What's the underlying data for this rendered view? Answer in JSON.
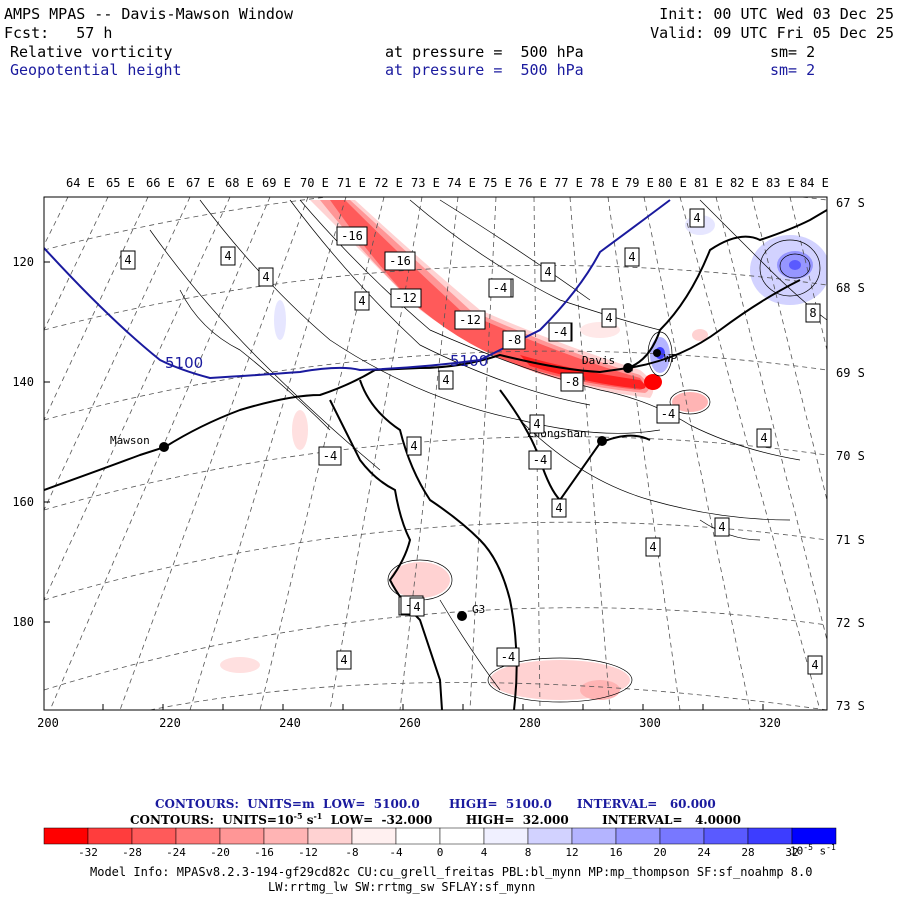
{
  "header": {
    "title": "AMPS MPAS -- Davis-Mawson Window",
    "init": "Init: 00 UTC Wed 03 Dec 25",
    "fcst": "Fcst:   57 h",
    "valid": "Valid: 09 UTC Fri 05 Dec 25",
    "field1": {
      "name": "Relative vorticity",
      "level": "at pressure =  500 hPa",
      "smooth": "sm= 2"
    },
    "field2": {
      "name": "Geopotential height",
      "level": "at pressure =  500 hPa",
      "smooth": "sm= 2"
    }
  },
  "colors": {
    "height_contour": "#1a1a9e",
    "negative": "#ff0000",
    "positive": "#0000ff",
    "coast": "#000000"
  },
  "axes": {
    "lon_labels": [
      "64 E",
      "65 E",
      "66 E",
      "67 E",
      "68 E",
      "69 E",
      "70 E",
      "71 E",
      "72 E",
      "73 E",
      "74 E",
      "75 E",
      "76 E",
      "77 E",
      "78 E",
      "79 E",
      "80 E",
      "81 E",
      "82 E",
      "83 E",
      "84 E"
    ],
    "lat_labels": [
      "67 S",
      "68 S",
      "69 S",
      "70 S",
      "71 S",
      "72 S",
      "73 S"
    ],
    "y_ticks": [
      "120",
      "140",
      "160",
      "180"
    ],
    "x_ticks": [
      "200",
      "220",
      "240",
      "260",
      "280",
      "300",
      "320"
    ]
  },
  "stations": [
    {
      "name": "Mawson"
    },
    {
      "name": "Davis"
    },
    {
      "name": "Zhongshan"
    },
    {
      "name": "G3"
    },
    {
      "name": "WP"
    }
  ],
  "height_labels": [
    "5100",
    "5100"
  ],
  "vort_labels": [
    "-16",
    "-16",
    "-12",
    "-12",
    "-8",
    "-8",
    "-8",
    "-8",
    "-4",
    "-4",
    "-4",
    "-4",
    "-4",
    "-4",
    "-4",
    "-4",
    "4",
    "4",
    "4",
    "4",
    "4",
    "4",
    "4",
    "4",
    "4",
    "4",
    "4",
    "4",
    "4",
    "4",
    "4",
    "4",
    "4",
    "4",
    "8"
  ],
  "contour_info": {
    "line1": {
      "units": "CONTOURS:  UNITS=m",
      "low": "LOW=  5100.0",
      "high": "HIGH=  5100.0",
      "interval": "INTERVAL=   60.000"
    },
    "line2": {
      "units": "CONTOURS:  UNITS=10",
      "units_exp": "-5",
      "units_tail": " s",
      "units_tail_exp": "-1",
      "low": "LOW=  -32.000",
      "high": "HIGH=  32.000",
      "interval": "INTERVAL=   4.0000"
    }
  },
  "colorbar": {
    "labels": [
      "-32",
      "-28",
      "-24",
      "-20",
      "-16",
      "-12",
      "-8",
      "-4",
      "0",
      "4",
      "8",
      "12",
      "16",
      "20",
      "24",
      "28",
      "32"
    ],
    "units": "10",
    "units_exp": "-5",
    "units_tail": " s",
    "units_tail_exp": "-1",
    "colors": [
      "#ff0000",
      "#ff3d3d",
      "#ff5a5a",
      "#ff7878",
      "#ff9696",
      "#ffb4b4",
      "#ffd2d2",
      "#fff0f0",
      "#ffffff",
      "#ffffff",
      "#f0f0ff",
      "#d2d2ff",
      "#b4b4ff",
      "#9696ff",
      "#7878ff",
      "#5a5aff",
      "#3d3dff",
      "#0000ff"
    ]
  },
  "model_info": {
    "line1": "Model Info: MPASv8.2.3-194-gf29cd82c CU:cu_grell_freitas PBL:bl_mynn MP:mp_thompson SF:sf_noahmp 8.0",
    "line2": "LW:rrtmg_lw SW:rrtmg_sw SFLAY:sf_mynn"
  }
}
